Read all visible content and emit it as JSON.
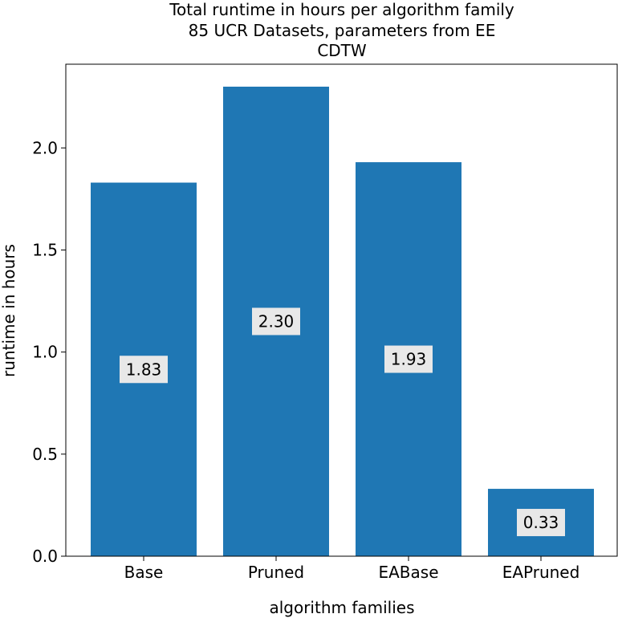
{
  "chart_data": {
    "type": "bar",
    "title_lines": [
      "Total runtime in hours per algorithm family",
      "85 UCR Datasets, parameters from EE",
      "CDTW"
    ],
    "xlabel": "algorithm families",
    "ylabel": "runtime in hours",
    "categories": [
      "Base",
      "Pruned",
      "EABase",
      "EAPruned"
    ],
    "values": [
      1.83,
      2.3,
      1.93,
      0.33
    ],
    "data_labels": [
      "1.83",
      "2.30",
      "1.93",
      "0.33"
    ],
    "ylim": [
      0,
      2.41
    ],
    "yticks": [
      0.0,
      0.5,
      1.0,
      1.5,
      2.0
    ],
    "ytick_labels": [
      "0.0",
      "0.5",
      "1.0",
      "1.5",
      "2.0"
    ],
    "bar_color": "#1f77b4",
    "label_box_color": "#e8e8e8",
    "grid": false,
    "legend": "none"
  }
}
